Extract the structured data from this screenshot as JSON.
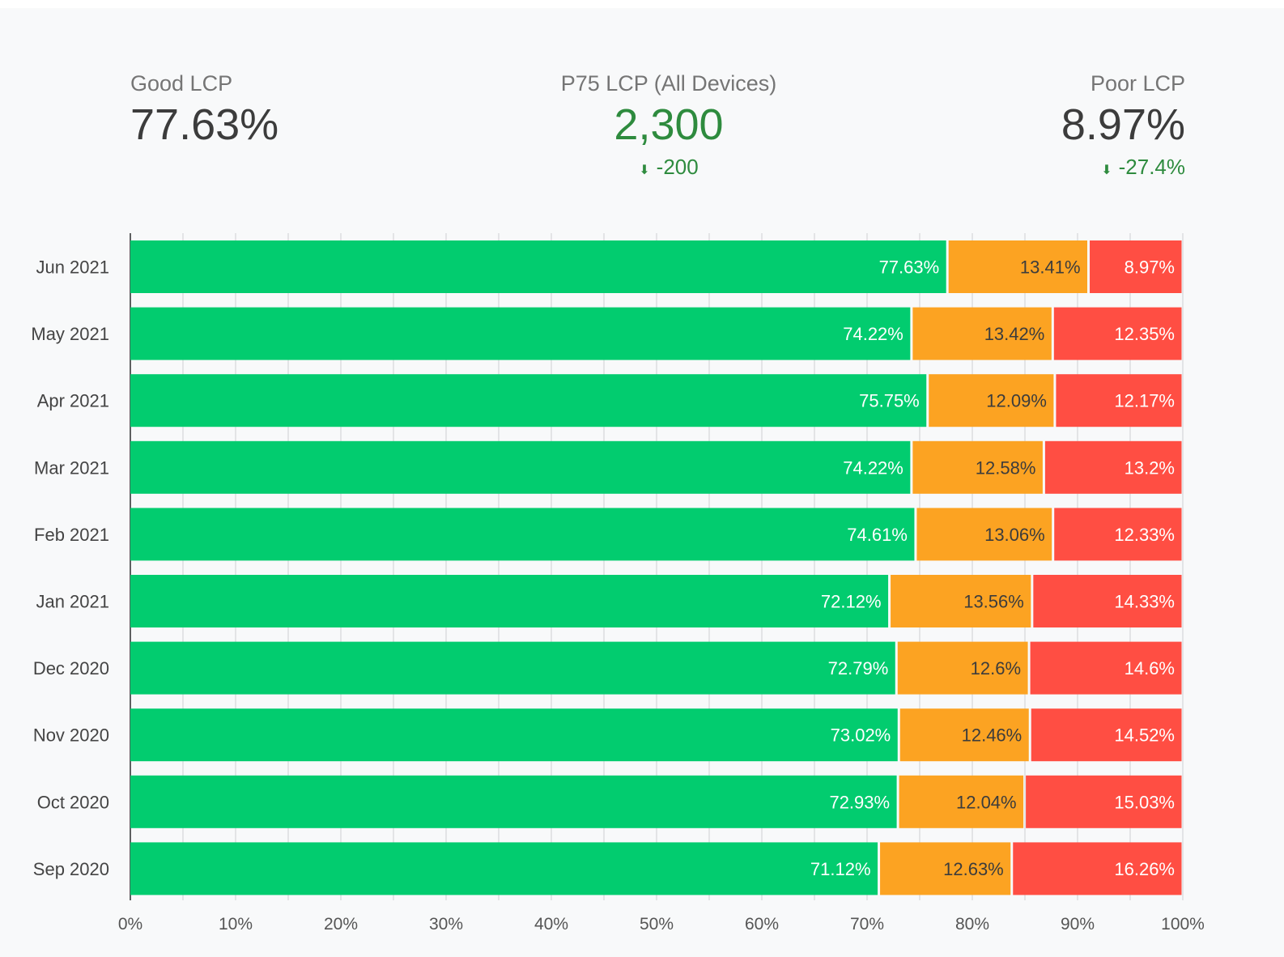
{
  "kpis": {
    "good": {
      "label": "Good LCP",
      "value": "77.63%"
    },
    "p75": {
      "label": "P75 LCP (All Devices)",
      "value": "2,300",
      "delta": "-200",
      "delta_icon": "arrow-down-icon"
    },
    "poor": {
      "label": "Poor LCP",
      "value": "8.97%",
      "delta": "-27.4%",
      "delta_icon": "arrow-down-icon"
    }
  },
  "colors": {
    "good": "#02cc6f",
    "needs_improvement": "#fca322",
    "poor": "#ff4e43",
    "accent": "#2e8b3e"
  },
  "chart_data": {
    "type": "bar",
    "orientation": "horizontal",
    "stacked": true,
    "categories": [
      "Jun 2021",
      "May 2021",
      "Apr 2021",
      "Mar 2021",
      "Feb 2021",
      "Jan 2021",
      "Dec 2020",
      "Nov 2020",
      "Oct 2020",
      "Sep 2020"
    ],
    "series": [
      {
        "values": [
          77.63,
          74.22,
          75.75,
          74.22,
          74.61,
          72.12,
          72.79,
          73.02,
          72.93,
          71.12
        ],
        "labels": [
          "77.63%",
          "74.22%",
          "75.75%",
          "74.22%",
          "74.61%",
          "72.12%",
          "72.79%",
          "73.02%",
          "72.93%",
          "71.12%"
        ]
      },
      {
        "values": [
          13.41,
          13.42,
          12.09,
          12.58,
          13.06,
          13.56,
          12.6,
          12.46,
          12.04,
          12.63
        ],
        "labels": [
          "13.41%",
          "13.42%",
          "12.09%",
          "12.58%",
          "13.06%",
          "13.56%",
          "12.6%",
          "12.46%",
          "12.04%",
          "12.63%"
        ]
      },
      {
        "values": [
          8.97,
          12.35,
          12.17,
          13.2,
          12.33,
          14.33,
          14.6,
          14.52,
          15.03,
          16.26
        ],
        "labels": [
          "8.97%",
          "12.35%",
          "12.17%",
          "13.2%",
          "12.33%",
          "14.33%",
          "14.6%",
          "14.52%",
          "15.03%",
          "16.26%"
        ]
      }
    ],
    "xlim": [
      0,
      100
    ],
    "xticks": [
      "0%",
      "10%",
      "20%",
      "30%",
      "40%",
      "50%",
      "60%",
      "70%",
      "80%",
      "90%",
      "100%"
    ],
    "grid": true
  }
}
